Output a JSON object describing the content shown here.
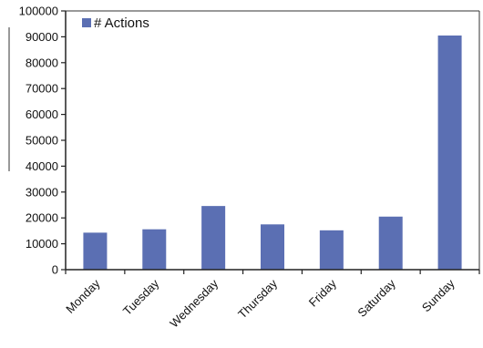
{
  "chart_data": {
    "type": "bar",
    "categories": [
      "Monday",
      "Tuesday",
      "Wednesday",
      "Thursday",
      "Friday",
      "Saturday",
      "Sunday"
    ],
    "series": [
      {
        "name": "# Actions",
        "color": "#5b6fb3",
        "values": [
          14300,
          15600,
          24600,
          17500,
          15200,
          20500,
          90500
        ]
      }
    ],
    "title": "",
    "xlabel": "",
    "ylabel": "",
    "ylim": [
      0,
      100000
    ],
    "yticks": [
      "0",
      "10000",
      "20000",
      "30000",
      "40000",
      "50000",
      "60000",
      "70000",
      "80000",
      "90000",
      "100000"
    ],
    "grid": false,
    "legend": "top-left"
  }
}
